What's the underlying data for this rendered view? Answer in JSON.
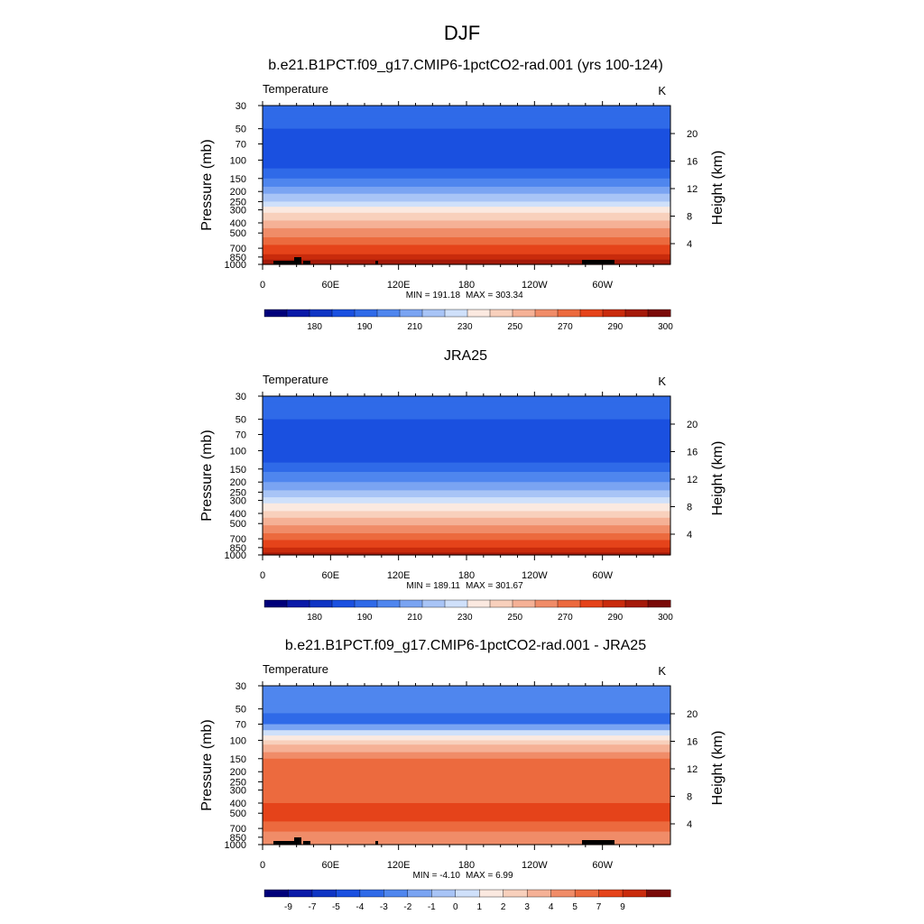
{
  "figure_title": "DJF",
  "chart_data": [
    {
      "type": "heatmap",
      "title": "b.e21.B1PCT.f09_g17.CMIP6-1pctCO2-rad.001 (yrs 100-124)",
      "variable": "Temperature",
      "units": "K",
      "ylabel": "Pressure (mb)",
      "ylabel_right": "Height (km)",
      "x_ticks": [
        "0",
        "60E",
        "120E",
        "180",
        "120W",
        "60W"
      ],
      "y_ticks": [
        "30",
        "50",
        "70",
        "100",
        "150",
        "200",
        "250",
        "300",
        "400",
        "500",
        "700",
        "850",
        "1000"
      ],
      "height_ticks": [
        "20",
        "16",
        "12",
        "8",
        "4"
      ],
      "min_text": "MIN = 191.18",
      "max_text": "MAX = 303.34",
      "colorbar_labels": [
        "180",
        "190",
        "210",
        "230",
        "250",
        "270",
        "290",
        "300"
      ],
      "profile": [
        {
          "p": 30,
          "band": 4
        },
        {
          "p": 40,
          "band": 4
        },
        {
          "p": 50,
          "band": 3
        },
        {
          "p": 70,
          "band": 3
        },
        {
          "p": 100,
          "band": 3
        },
        {
          "p": 120,
          "band": 4
        },
        {
          "p": 150,
          "band": 5
        },
        {
          "p": 180,
          "band": 6
        },
        {
          "p": 210,
          "band": 7
        },
        {
          "p": 250,
          "band": 8
        },
        {
          "p": 280,
          "band": 9
        },
        {
          "p": 320,
          "band": 10
        },
        {
          "p": 380,
          "band": 11
        },
        {
          "p": 450,
          "band": 12
        },
        {
          "p": 550,
          "band": 13
        },
        {
          "p": 650,
          "band": 14
        },
        {
          "p": 800,
          "band": 15
        },
        {
          "p": 900,
          "band": 16
        },
        {
          "p": 1000,
          "band": 16
        }
      ]
    },
    {
      "type": "heatmap",
      "title": "JRA25",
      "variable": "Temperature",
      "units": "K",
      "ylabel": "Pressure (mb)",
      "ylabel_right": "Height (km)",
      "x_ticks": [
        "0",
        "60E",
        "120E",
        "180",
        "120W",
        "60W"
      ],
      "y_ticks": [
        "30",
        "50",
        "70",
        "100",
        "150",
        "200",
        "250",
        "300",
        "400",
        "500",
        "700",
        "850",
        "1000"
      ],
      "height_ticks": [
        "20",
        "16",
        "12",
        "8",
        "4"
      ],
      "min_text": "MIN = 189.11",
      "max_text": "MAX = 301.67",
      "colorbar_labels": [
        "180",
        "190",
        "210",
        "230",
        "250",
        "270",
        "290",
        "300"
      ],
      "profile": [
        {
          "p": 30,
          "band": 4
        },
        {
          "p": 35,
          "band": 4
        },
        {
          "p": 50,
          "band": 3
        },
        {
          "p": 70,
          "band": 3
        },
        {
          "p": 100,
          "band": 3
        },
        {
          "p": 130,
          "band": 4
        },
        {
          "p": 160,
          "band": 5
        },
        {
          "p": 200,
          "band": 6
        },
        {
          "p": 240,
          "band": 7
        },
        {
          "p": 280,
          "band": 8
        },
        {
          "p": 320,
          "band": 9
        },
        {
          "p": 380,
          "band": 10
        },
        {
          "p": 440,
          "band": 11
        },
        {
          "p": 520,
          "band": 12
        },
        {
          "p": 620,
          "band": 13
        },
        {
          "p": 720,
          "band": 14
        },
        {
          "p": 850,
          "band": 15
        },
        {
          "p": 950,
          "band": 16
        },
        {
          "p": 1000,
          "band": 16
        }
      ]
    },
    {
      "type": "heatmap",
      "title": "b.e21.B1PCT.f09_g17.CMIP6-1pctCO2-rad.001 - JRA25",
      "variable": "Temperature",
      "units": "K",
      "ylabel": "Pressure (mb)",
      "ylabel_right": "Height (km)",
      "x_ticks": [
        "0",
        "60E",
        "120E",
        "180",
        "120W",
        "60W"
      ],
      "y_ticks": [
        "30",
        "50",
        "70",
        "100",
        "150",
        "200",
        "250",
        "300",
        "400",
        "500",
        "700",
        "850",
        "1000"
      ],
      "height_ticks": [
        "20",
        "16",
        "12",
        "8",
        "4"
      ],
      "min_text": "MIN = -4.10",
      "max_text": "MAX = 6.99",
      "colorbar_labels": [
        "-9",
        "-7",
        "-5",
        "-4",
        "-3",
        "-2",
        "-1",
        "0",
        "1",
        "2",
        "3",
        "4",
        "5",
        "7",
        "9"
      ],
      "profile": [
        {
          "p": 30,
          "band": 5
        },
        {
          "p": 45,
          "band": 5
        },
        {
          "p": 55,
          "band": 4
        },
        {
          "p": 70,
          "band": 6
        },
        {
          "p": 80,
          "band": 8
        },
        {
          "p": 90,
          "band": 9
        },
        {
          "p": 100,
          "band": 10
        },
        {
          "p": 110,
          "band": 11
        },
        {
          "p": 130,
          "band": 12
        },
        {
          "p": 150,
          "band": 13
        },
        {
          "p": 400,
          "band": 14
        },
        {
          "p": 600,
          "band": 13
        },
        {
          "p": 750,
          "band": 12
        },
        {
          "p": 1000,
          "band": 12
        }
      ]
    }
  ],
  "colors": {
    "temperature_bands": [
      "#00007a",
      "#0a1aa8",
      "#0f35c4",
      "#1a50e0",
      "#2f6ae8",
      "#4f86ee",
      "#7aa4f2",
      "#a8c4f6",
      "#cfe0fa",
      "#fbe9e0",
      "#f8d0bc",
      "#f5b196",
      "#f08c68",
      "#ec6a3e",
      "#e5431a",
      "#c92b0c",
      "#a51a0a",
      "#7a0a08"
    ],
    "difference_bands": [
      "#00007a",
      "#0a1aa8",
      "#0f35c4",
      "#1a50e0",
      "#2f6ae8",
      "#4f86ee",
      "#7aa4f2",
      "#a8c4f6",
      "#cfe0fa",
      "#fbe9e0",
      "#f8d0bc",
      "#f5b196",
      "#f08c68",
      "#ec6a3e",
      "#e5431a",
      "#c92b0c",
      "#7a0a08"
    ]
  }
}
